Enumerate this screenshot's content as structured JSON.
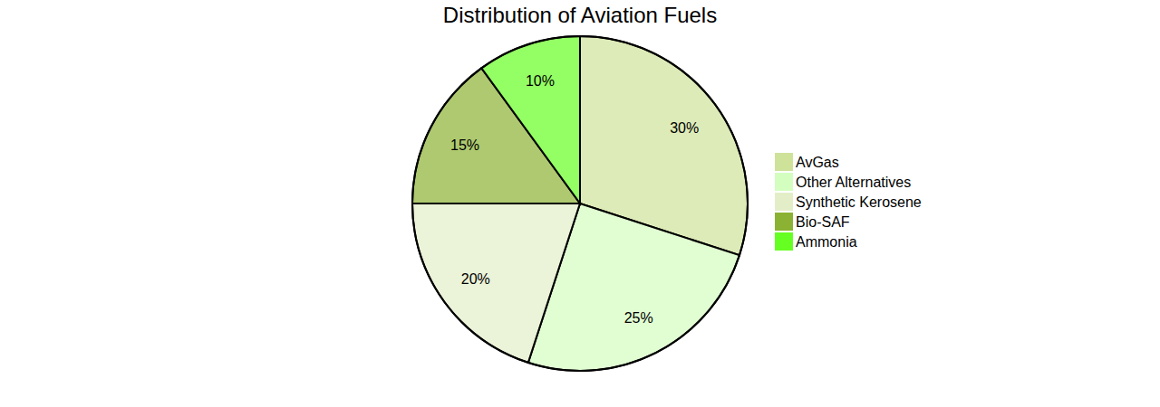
{
  "chart_data": {
    "type": "pie",
    "title": "Distribution of Aviation Fuels",
    "categories": [
      "AvGas",
      "Other Alternatives",
      "Synthetic Kerosene",
      "Bio-SAF",
      "Ammonia"
    ],
    "values": [
      30,
      25,
      20,
      15,
      10
    ],
    "value_labels": [
      "30%",
      "25%",
      "20%",
      "15%",
      "10%"
    ],
    "colors": [
      "#cfe29a",
      "#d4fdc0",
      "#e3eec8",
      "#8bb232",
      "#66ff22"
    ],
    "legend": "right",
    "data_labels": true
  }
}
